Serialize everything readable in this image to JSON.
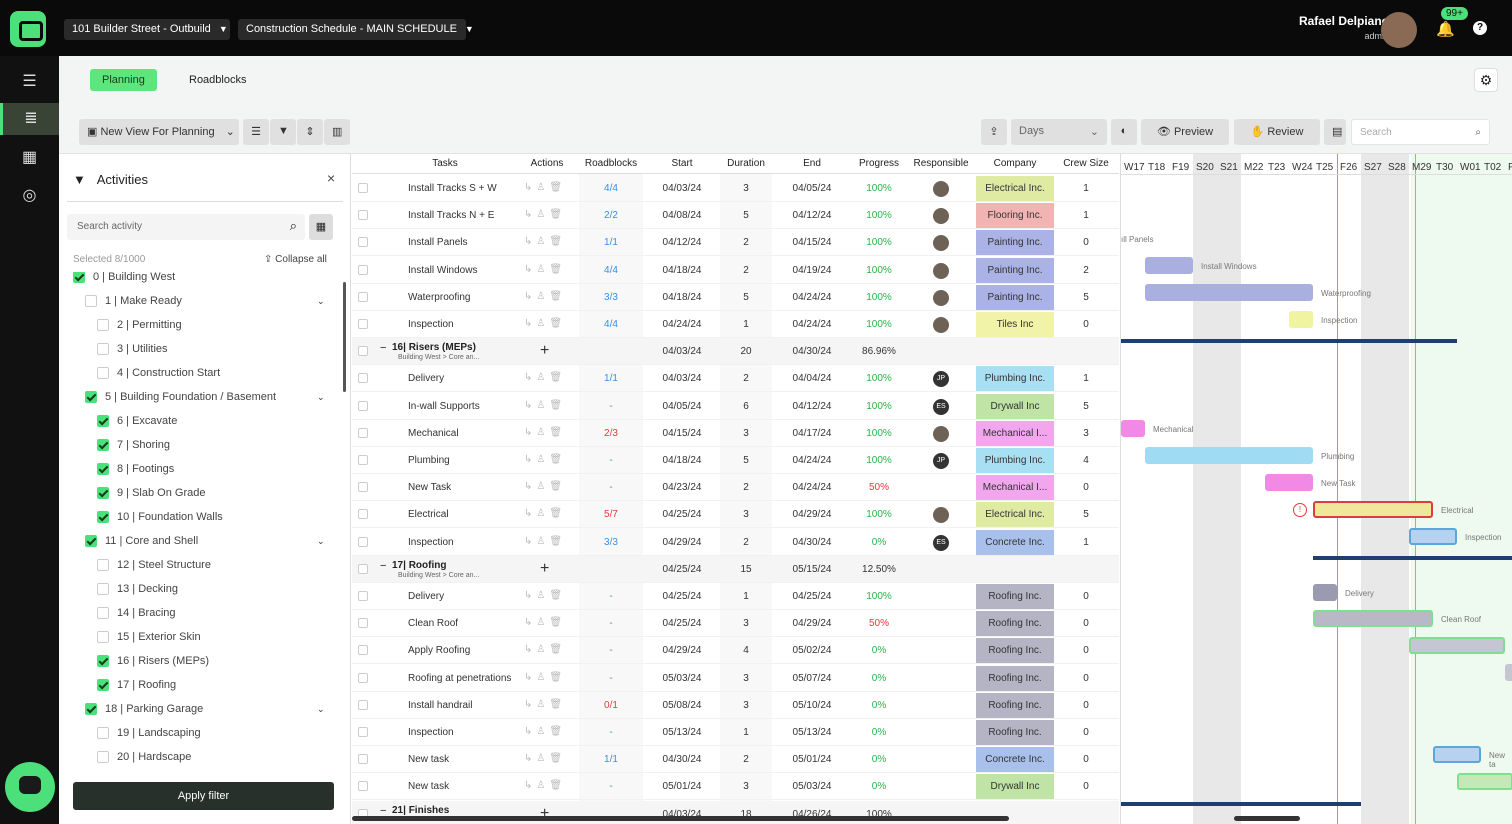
{
  "project": "101 Builder Street - Outbuild",
  "schedule": "Construction Schedule - MAIN SCHEDULE",
  "user": {
    "name": "Rafael Delpiano",
    "role": "admin"
  },
  "notifications": "99+",
  "tabs": [
    "Planning",
    "Roadblocks"
  ],
  "toolbar": {
    "view": "New View For Planning",
    "scale": "Days",
    "preview": "Preview",
    "review": "Review",
    "search_placeholder": "Search"
  },
  "filter": {
    "title": "Activities",
    "search_placeholder": "Search activity",
    "selected": "Selected 8/1000",
    "collapse": "Collapse all",
    "apply": "Apply filter",
    "items": [
      {
        "label": "0 | Building West",
        "checked": true,
        "level": 0
      },
      {
        "label": "1 | Make Ready",
        "checked": false,
        "level": 1,
        "expand": true
      },
      {
        "label": "2 | Permitting",
        "checked": false,
        "level": 2
      },
      {
        "label": "3 | Utilities",
        "checked": false,
        "level": 2
      },
      {
        "label": "4 | Construction Start",
        "checked": false,
        "level": 2
      },
      {
        "label": "5 | Building Foundation / Basement",
        "checked": true,
        "level": 1,
        "expand": true
      },
      {
        "label": "6 | Excavate",
        "checked": true,
        "level": 2
      },
      {
        "label": "7 | Shoring",
        "checked": true,
        "level": 2
      },
      {
        "label": "8 | Footings",
        "checked": true,
        "level": 2
      },
      {
        "label": "9 | Slab On Grade",
        "checked": true,
        "level": 2
      },
      {
        "label": "10 | Foundation Walls",
        "checked": true,
        "level": 2
      },
      {
        "label": "11 | Core and Shell",
        "checked": true,
        "level": 1,
        "expand": true
      },
      {
        "label": "12 | Steel Structure",
        "checked": false,
        "level": 2
      },
      {
        "label": "13 | Decking",
        "checked": false,
        "level": 2
      },
      {
        "label": "14 | Bracing",
        "checked": false,
        "level": 2
      },
      {
        "label": "15 | Exterior Skin",
        "checked": false,
        "level": 2
      },
      {
        "label": "16 | Risers (MEPs)",
        "checked": true,
        "level": 2
      },
      {
        "label": "17 | Roofing",
        "checked": true,
        "level": 2
      },
      {
        "label": "18 | Parking Garage",
        "checked": true,
        "level": 1,
        "expand": true
      },
      {
        "label": "19 | Landscaping",
        "checked": false,
        "level": 2
      },
      {
        "label": "20 | Hardscape",
        "checked": false,
        "level": 2
      }
    ]
  },
  "columns": [
    "Tasks",
    "Actions",
    "Roadblocks",
    "Start",
    "Duration",
    "End",
    "Progress",
    "Responsible",
    "Company",
    "Crew Size"
  ],
  "rows": [
    {
      "type": "task",
      "task": "Install Tracks S + W",
      "rb": "4/4",
      "start": "04/03/24",
      "dur": "3",
      "end": "04/05/24",
      "prog": "100%",
      "resp": "photo",
      "company": "Electrical Inc.",
      "ccolor": "#dfeaa3",
      "crew": "1"
    },
    {
      "type": "task",
      "task": "Install Tracks N + E",
      "rb": "2/2",
      "start": "04/08/24",
      "dur": "5",
      "end": "04/12/24",
      "prog": "100%",
      "resp": "photo",
      "company": "Flooring Inc.",
      "ccolor": "#f2b3b3",
      "crew": "1"
    },
    {
      "type": "task",
      "task": "Install Panels",
      "rb": "1/1",
      "start": "04/12/24",
      "dur": "2",
      "end": "04/15/24",
      "prog": "100%",
      "resp": "photo",
      "company": "Painting Inc.",
      "ccolor": "#aab2e6",
      "crew": "0"
    },
    {
      "type": "task",
      "task": "Install Windows",
      "rb": "4/4",
      "start": "04/18/24",
      "dur": "2",
      "end": "04/19/24",
      "prog": "100%",
      "resp": "photo",
      "company": "Painting Inc.",
      "ccolor": "#aab2e6",
      "crew": "2"
    },
    {
      "type": "task",
      "task": "Waterproofing",
      "rb": "3/3",
      "start": "04/18/24",
      "dur": "5",
      "end": "04/24/24",
      "prog": "100%",
      "resp": "photo",
      "company": "Painting Inc.",
      "ccolor": "#aab2e6",
      "crew": "5"
    },
    {
      "type": "task",
      "task": "Inspection",
      "rb": "4/4",
      "start": "04/24/24",
      "dur": "1",
      "end": "04/24/24",
      "prog": "100%",
      "resp": "photo",
      "company": "Tiles Inc",
      "ccolor": "#f0f3a8",
      "crew": "0"
    },
    {
      "type": "group",
      "task": "16| Risers (MEPs)",
      "sub": "Building West > Core an...",
      "start": "04/03/24",
      "dur": "20",
      "end": "04/30/24",
      "prog": "86.96%"
    },
    {
      "type": "task",
      "task": "Delivery",
      "rb": "1/1",
      "start": "04/03/24",
      "dur": "2",
      "end": "04/04/24",
      "prog": "100%",
      "resp": "JP",
      "company": "Plumbing Inc.",
      "ccolor": "#a9dff3",
      "crew": "1"
    },
    {
      "type": "task",
      "task": "In-wall Supports",
      "rb": "-",
      "start": "04/05/24",
      "dur": "6",
      "end": "04/12/24",
      "prog": "100%",
      "resp": "ES",
      "company": "Drywall Inc",
      "ccolor": "#bfe4a6",
      "crew": "5"
    },
    {
      "type": "task",
      "task": "Mechanical",
      "rb": "2/3",
      "rbred": true,
      "start": "04/15/24",
      "dur": "3",
      "end": "04/17/24",
      "prog": "100%",
      "resp": "photo",
      "company": "Mechanical I...",
      "ccolor": "#f2a6ee",
      "crew": "3"
    },
    {
      "type": "task",
      "task": "Plumbing",
      "rb": "-",
      "start": "04/18/24",
      "dur": "5",
      "end": "04/24/24",
      "prog": "100%",
      "resp": "JP",
      "company": "Plumbing Inc.",
      "ccolor": "#a9dff3",
      "crew": "4"
    },
    {
      "type": "task",
      "task": "New Task",
      "rb": "-",
      "start": "04/23/24",
      "dur": "2",
      "end": "04/24/24",
      "prog": "50%",
      "progred": true,
      "resp": "",
      "company": "Mechanical I...",
      "ccolor": "#f2a6ee",
      "crew": "0"
    },
    {
      "type": "task",
      "task": "Electrical",
      "rb": "5/7",
      "rbred": true,
      "start": "04/25/24",
      "dur": "3",
      "end": "04/29/24",
      "prog": "100%",
      "resp": "photo",
      "company": "Electrical Inc.",
      "ccolor": "#dfeaa3",
      "crew": "5"
    },
    {
      "type": "task",
      "task": "Inspection",
      "rb": "3/3",
      "start": "04/29/24",
      "dur": "2",
      "end": "04/30/24",
      "prog": "0%",
      "resp": "ES",
      "company": "Concrete Inc.",
      "ccolor": "#a9c0ec",
      "crew": "1"
    },
    {
      "type": "group",
      "task": "17| Roofing",
      "sub": "Building West > Core an...",
      "start": "04/25/24",
      "dur": "15",
      "end": "05/15/24",
      "prog": "12.50%"
    },
    {
      "type": "task",
      "task": "Delivery",
      "rb": "-",
      "start": "04/25/24",
      "dur": "1",
      "end": "04/25/24",
      "prog": "100%",
      "resp": "",
      "company": "Roofing Inc.",
      "ccolor": "#b4b4c4",
      "crew": "0"
    },
    {
      "type": "task",
      "task": "Clean Roof",
      "rb": "-",
      "start": "04/25/24",
      "dur": "3",
      "end": "04/29/24",
      "prog": "50%",
      "progred": true,
      "resp": "",
      "company": "Roofing Inc.",
      "ccolor": "#b4b4c4",
      "crew": "0"
    },
    {
      "type": "task",
      "task": "Apply Roofing",
      "rb": "-",
      "start": "04/29/24",
      "dur": "4",
      "end": "05/02/24",
      "prog": "0%",
      "resp": "",
      "company": "Roofing Inc.",
      "ccolor": "#b4b4c4",
      "crew": "0"
    },
    {
      "type": "task",
      "task": "Roofing at penetrations",
      "rb": "-",
      "start": "05/03/24",
      "dur": "3",
      "end": "05/07/24",
      "prog": "0%",
      "resp": "",
      "company": "Roofing Inc.",
      "ccolor": "#b4b4c4",
      "crew": "0"
    },
    {
      "type": "task",
      "task": "Install handrail",
      "rb": "0/1",
      "rbred": true,
      "start": "05/08/24",
      "dur": "3",
      "end": "05/10/24",
      "prog": "0%",
      "resp": "",
      "company": "Roofing Inc.",
      "ccolor": "#b4b4c4",
      "crew": "0"
    },
    {
      "type": "task",
      "task": "Inspection",
      "rb": "-",
      "start": "05/13/24",
      "dur": "1",
      "end": "05/13/24",
      "prog": "0%",
      "resp": "",
      "company": "Roofing Inc.",
      "ccolor": "#b4b4c4",
      "crew": "0"
    },
    {
      "type": "task",
      "task": "New task",
      "rb": "1/1",
      "start": "04/30/24",
      "dur": "2",
      "end": "05/01/24",
      "prog": "0%",
      "resp": "",
      "company": "Concrete Inc.",
      "ccolor": "#a9c0ec",
      "crew": "0"
    },
    {
      "type": "task",
      "task": "New task",
      "rb": "-",
      "start": "05/01/24",
      "dur": "3",
      "end": "05/03/24",
      "prog": "0%",
      "resp": "",
      "company": "Drywall Inc",
      "ccolor": "#bfe4a6",
      "crew": "0"
    },
    {
      "type": "group",
      "task": "21| Finishes",
      "sub": "",
      "start": "04/03/24",
      "dur": "18",
      "end": "04/26/24",
      "prog": "100%"
    }
  ],
  "gantt": {
    "weeks": [
      "W17",
      "T18",
      "F19",
      "S20",
      "S21",
      "M22",
      "T23",
      "W24",
      "T25",
      "F26",
      "S27",
      "S28",
      "M29",
      "T30",
      "W01",
      "T02",
      "F"
    ],
    "labels": {
      "install_panels": "ıll Panels",
      "install_windows": "Install Windows",
      "waterproofing": "Waterproofing",
      "inspection": "Inspection",
      "mechanical": "Mechanical",
      "plumbing": "Plumbing",
      "new_task": "New Task",
      "electrical": "Electrical",
      "inspection2": "Inspection",
      "delivery": "Delivery",
      "clean_roof": "Clean Roof",
      "new_task_2": "New ta"
    }
  }
}
